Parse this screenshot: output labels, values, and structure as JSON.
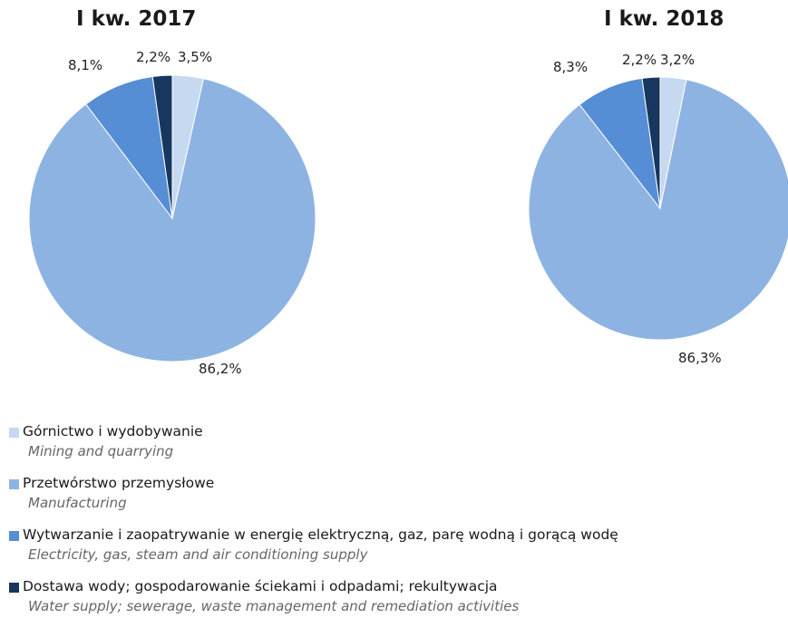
{
  "chart_data": [
    {
      "type": "pie",
      "title": "I kw. 2017",
      "slices": [
        {
          "label": "Górnictwo i wydobywanie",
          "value": 3.5,
          "text": "3,5%",
          "color": "#c6d9f1"
        },
        {
          "label": "Przetwórstwo przemysłowe",
          "value": 86.2,
          "text": "86,2%",
          "color": "#8db3e2"
        },
        {
          "label": "Wytwarzanie i zaopatrywanie w energię elektryczną, gaz, parę wodną i gorącą wodę",
          "value": 8.1,
          "text": "8,1%",
          "color": "#558ed5"
        },
        {
          "label": "Dostawa wody; gospodarowanie ściekami i odpadami; rekultywacja",
          "value": 2.2,
          "text": "2,2%",
          "color": "#17375e"
        }
      ]
    },
    {
      "type": "pie",
      "title": "I kw. 2018",
      "slices": [
        {
          "label": "Górnictwo i wydobywanie",
          "value": 3.2,
          "text": "3,2%",
          "color": "#c6d9f1"
        },
        {
          "label": "Przetwórstwo przemysłowe",
          "value": 86.3,
          "text": "86,3%",
          "color": "#8db3e2"
        },
        {
          "label": "Wytwarzanie i zaopatrywanie w energię elektryczną, gaz, parę wodną i gorącą wodę",
          "value": 8.3,
          "text": "8,3%",
          "color": "#558ed5"
        },
        {
          "label": "Dostawa wody; gospodarowanie ściekami i odpadami; rekultywacja",
          "value": 2.2,
          "text": "2,2%",
          "color": "#17375e"
        }
      ]
    }
  ],
  "legend": {
    "items": [
      {
        "pl": "Górnictwo i wydobywanie",
        "en": "Mining and quarrying",
        "color": "#c6d9f1"
      },
      {
        "pl": "Przetwórstwo przemysłowe",
        "en": "Manufacturing",
        "color": "#8db3e2"
      },
      {
        "pl": "Wytwarzanie i zaopatrywanie w energię elektryczną, gaz, parę wodną i gorącą wodę",
        "en": "Electricity, gas, steam and air conditioning supply",
        "color": "#558ed5"
      },
      {
        "pl": "Dostawa wody; gospodarowanie ściekami i odpadami; rekultywacja",
        "en": "Water supply; sewerage, waste management and remediation activities",
        "color": "#17375e"
      }
    ]
  }
}
